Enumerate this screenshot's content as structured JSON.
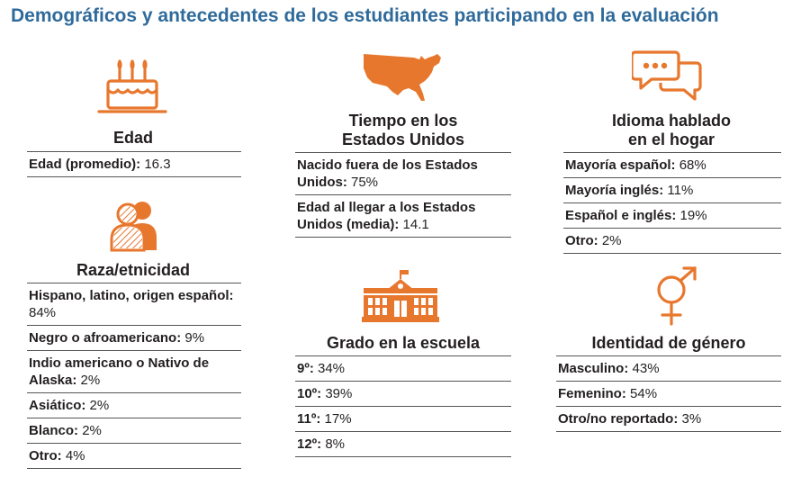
{
  "title": "Demográficos y antecedentes de los estudiantes participando en la evaluación",
  "accent_color": "#e8772e",
  "title_color": "#2f6a9a",
  "sections": {
    "edad": {
      "icon": "birthday-cake-icon",
      "heading": "Edad",
      "rows": [
        {
          "label": "Edad (promedio):",
          "value": "16.3"
        }
      ]
    },
    "raza": {
      "icon": "people-icon",
      "heading": "Raza/etnicidad",
      "rows": [
        {
          "label": "Hispano, latino, origen español:",
          "value": "84%"
        },
        {
          "label": "Negro o afroamericano:",
          "value": "9%"
        },
        {
          "label": "Indio americano o Nativo de Alaska:",
          "value": "2%"
        },
        {
          "label": "Asiático:",
          "value": "2%"
        },
        {
          "label": "Blanco:",
          "value": "2%"
        },
        {
          "label": "Otro:",
          "value": "4%"
        }
      ]
    },
    "tiempo": {
      "icon": "usa-map-icon",
      "heading_line1": "Tiempo en los",
      "heading_line2": "Estados Unidos",
      "rows": [
        {
          "label": "Nacido fuera de los Estados Unidos:",
          "value": "75%"
        },
        {
          "label": "Edad al llegar a los Estados Unidos (media):",
          "value": "14.1"
        }
      ]
    },
    "grado": {
      "icon": "school-building-icon",
      "heading": "Grado en la escuela",
      "rows": [
        {
          "label": "9º:",
          "value": "34%"
        },
        {
          "label": "10º:",
          "value": "39%"
        },
        {
          "label": "11º:",
          "value": "17%"
        },
        {
          "label": "12º:",
          "value": "8%"
        }
      ]
    },
    "idioma": {
      "icon": "speech-bubbles-icon",
      "heading_line1": "Idioma hablado",
      "heading_line2": "en el hogar",
      "rows": [
        {
          "label": "Mayoría español:",
          "value": "68%"
        },
        {
          "label": "Mayoría inglés:",
          "value": "11%"
        },
        {
          "label": "Español e inglés:",
          "value": "19%"
        },
        {
          "label": "Otro:",
          "value": "2%"
        }
      ]
    },
    "genero": {
      "icon": "gender-symbol-icon",
      "heading": "Identidad de género",
      "rows": [
        {
          "label": "Masculino:",
          "value": "43%"
        },
        {
          "label": "Femenino:",
          "value": "54%"
        },
        {
          "label": "Otro/no reportado:",
          "value": "3%"
        }
      ]
    }
  }
}
